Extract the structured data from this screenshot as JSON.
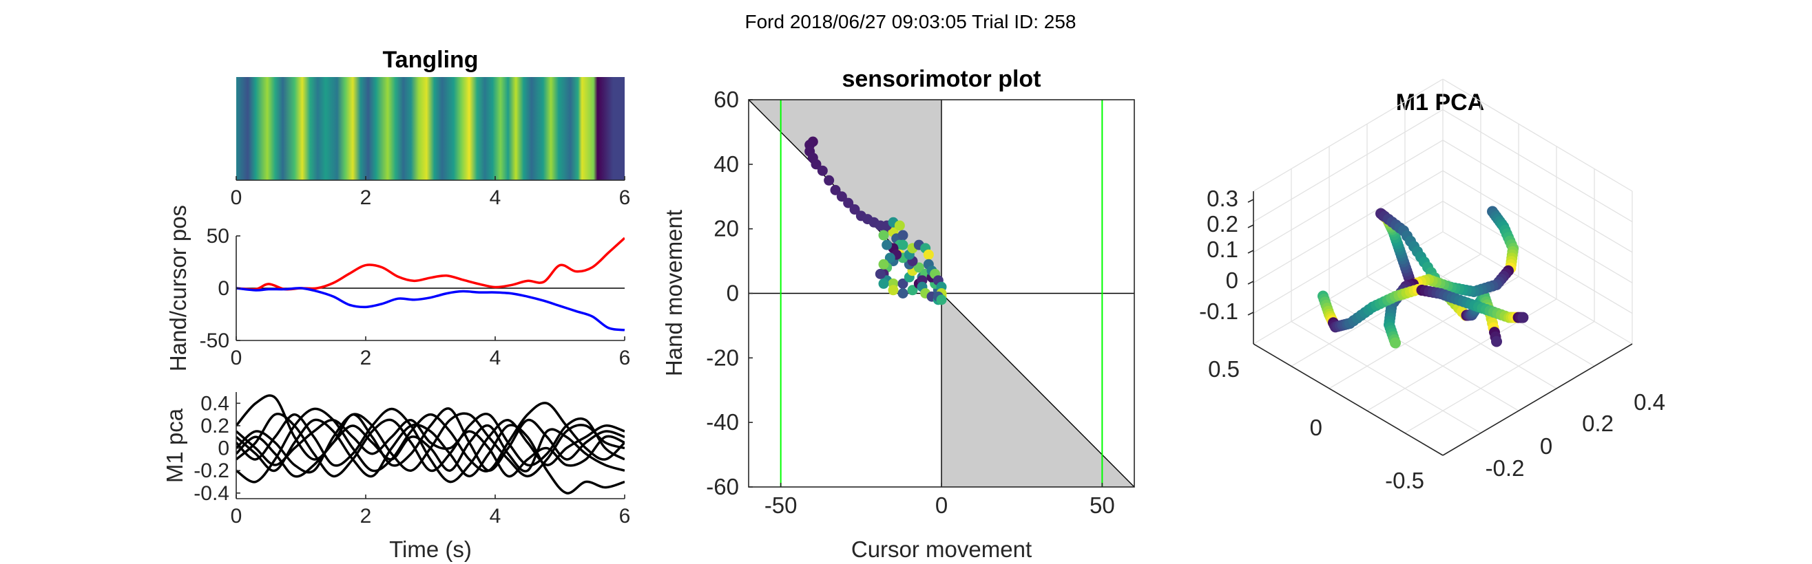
{
  "figure": {
    "suptitle": "Ford 2018/06/27 09:03:05 Trial ID: 258"
  },
  "chart_data": [
    {
      "id": "tangling",
      "type": "heatmap",
      "title": "Tangling",
      "xlabel": "",
      "ylabel": "",
      "xlim": [
        0,
        6
      ],
      "xticks": [
        0,
        2,
        4,
        6
      ],
      "colormap": "viridis",
      "bands": [
        [
          0.0,
          0.45
        ],
        [
          0.03,
          0.25
        ],
        [
          0.05,
          0.55
        ],
        [
          0.08,
          0.85
        ],
        [
          0.1,
          0.6
        ],
        [
          0.12,
          0.35
        ],
        [
          0.15,
          0.7
        ],
        [
          0.17,
          0.95
        ],
        [
          0.19,
          0.6
        ],
        [
          0.21,
          0.4
        ],
        [
          0.23,
          0.55
        ],
        [
          0.26,
          0.4
        ],
        [
          0.28,
          0.75
        ],
        [
          0.3,
          0.95
        ],
        [
          0.32,
          0.5
        ],
        [
          0.34,
          0.3
        ],
        [
          0.36,
          0.55
        ],
        [
          0.39,
          0.85
        ],
        [
          0.41,
          0.6
        ],
        [
          0.43,
          0.35
        ],
        [
          0.45,
          0.5
        ],
        [
          0.47,
          0.85
        ],
        [
          0.49,
          0.95
        ],
        [
          0.51,
          0.55
        ],
        [
          0.53,
          0.35
        ],
        [
          0.56,
          0.55
        ],
        [
          0.58,
          0.8
        ],
        [
          0.6,
          0.97
        ],
        [
          0.62,
          0.6
        ],
        [
          0.64,
          0.4
        ],
        [
          0.66,
          0.55
        ],
        [
          0.68,
          0.8
        ],
        [
          0.7,
          0.55
        ],
        [
          0.72,
          0.9
        ],
        [
          0.74,
          0.55
        ],
        [
          0.76,
          0.35
        ],
        [
          0.79,
          0.55
        ],
        [
          0.81,
          0.85
        ],
        [
          0.83,
          0.55
        ],
        [
          0.86,
          0.35
        ],
        [
          0.88,
          0.6
        ],
        [
          0.89,
          0.95
        ],
        [
          0.92,
          0.8
        ],
        [
          0.93,
          0.0
        ],
        [
          0.97,
          0.2
        ]
      ]
    },
    {
      "id": "handcursor",
      "type": "line",
      "title": "",
      "xlabel": "",
      "ylabel": "Hand/cursor pos",
      "xlim": [
        0,
        6
      ],
      "ylim": [
        -50,
        50
      ],
      "xticks": [
        0,
        2,
        4,
        6
      ],
      "yticks": [
        -50,
        0,
        50
      ],
      "x": [
        0,
        0.3,
        0.5,
        0.75,
        1.0,
        1.25,
        1.5,
        1.75,
        2.0,
        2.25,
        2.5,
        2.75,
        3.0,
        3.25,
        3.5,
        3.75,
        4.0,
        4.25,
        4.5,
        4.75,
        5.0,
        5.25,
        5.5,
        5.75,
        6.0
      ],
      "series": [
        {
          "color": "#ff0000",
          "values": [
            0,
            -1,
            4,
            -1,
            0,
            0,
            5,
            14,
            22,
            20,
            11,
            7,
            10,
            12,
            8,
            4,
            1,
            3,
            7,
            6,
            22,
            16,
            20,
            34,
            48
          ]
        },
        {
          "color": "#0000ff",
          "values": [
            0,
            -2,
            -1,
            -1,
            0,
            -3,
            -8,
            -16,
            -18,
            -15,
            -10,
            -11,
            -9,
            -5,
            -3,
            -4,
            -4,
            -5,
            -8,
            -12,
            -17,
            -22,
            -27,
            -38,
            -40
          ]
        }
      ],
      "reference_line": 0
    },
    {
      "id": "m1pca_time",
      "type": "line",
      "title": "",
      "xlabel": "Time (s)",
      "ylabel": "M1 pca",
      "xlim": [
        0,
        6
      ],
      "ylim": [
        -0.45,
        0.5
      ],
      "xticks": [
        0,
        2,
        4,
        6
      ],
      "yticks": [
        -0.4,
        -0.2,
        0,
        0.2,
        0.4
      ],
      "x": [
        0,
        0.3,
        0.6,
        0.9,
        1.2,
        1.5,
        1.8,
        2.1,
        2.4,
        2.7,
        3.0,
        3.3,
        3.6,
        3.9,
        4.2,
        4.5,
        4.8,
        5.1,
        5.4,
        5.7,
        6.0
      ],
      "series": [
        {
          "color": "#000000",
          "values": [
            0.2,
            0.4,
            0.45,
            0.1,
            -0.1,
            0.05,
            0.3,
            0.1,
            -0.15,
            -0.05,
            0.2,
            0.35,
            0.05,
            -0.2,
            0.0,
            0.25,
            0.1,
            -0.1,
            0.05,
            0.15,
            0.1
          ]
        },
        {
          "color": "#000000",
          "values": [
            -0.1,
            0.05,
            0.3,
            0.2,
            -0.05,
            -0.25,
            -0.1,
            0.15,
            0.25,
            0.05,
            -0.2,
            -0.05,
            0.2,
            0.3,
            0.05,
            -0.15,
            -0.05,
            0.2,
            0.25,
            0.0,
            -0.1
          ]
        },
        {
          "color": "#000000",
          "values": [
            0.1,
            -0.05,
            -0.2,
            0.05,
            0.25,
            0.15,
            -0.1,
            -0.25,
            0.0,
            0.2,
            0.15,
            -0.05,
            -0.25,
            -0.05,
            0.2,
            0.1,
            -0.2,
            -0.4,
            -0.3,
            -0.35,
            -0.3
          ]
        },
        {
          "color": "#000000",
          "values": [
            0.0,
            0.15,
            0.05,
            -0.15,
            -0.2,
            0.1,
            0.3,
            0.2,
            -0.05,
            -0.2,
            0.0,
            0.25,
            0.3,
            0.1,
            -0.1,
            -0.25,
            -0.1,
            0.15,
            0.2,
            0.05,
            0.0
          ]
        },
        {
          "color": "#000000",
          "values": [
            -0.2,
            -0.3,
            -0.1,
            0.2,
            0.35,
            0.25,
            0.0,
            -0.2,
            -0.1,
            0.15,
            0.3,
            0.15,
            -0.1,
            -0.2,
            0.05,
            0.3,
            0.4,
            0.2,
            0.0,
            -0.1,
            0.05
          ]
        },
        {
          "color": "#000000",
          "values": [
            0.05,
            -0.1,
            0.1,
            0.3,
            0.1,
            -0.15,
            -0.05,
            0.2,
            0.35,
            0.2,
            -0.1,
            -0.3,
            -0.15,
            0.1,
            0.25,
            0.05,
            -0.15,
            0.0,
            0.1,
            0.2,
            0.15
          ]
        },
        {
          "color": "#000000",
          "values": [
            -0.05,
            0.1,
            -0.05,
            -0.25,
            -0.15,
            0.05,
            0.2,
            0.05,
            -0.1,
            0.1,
            0.0,
            -0.2,
            0.05,
            0.2,
            -0.05,
            -0.2,
            0.15,
            0.1,
            -0.05,
            -0.15,
            -0.2
          ]
        },
        {
          "color": "#000000",
          "values": [
            0.15,
            0.0,
            -0.15,
            0.0,
            0.15,
            0.25,
            0.1,
            -0.05,
            0.1,
            0.25,
            0.05,
            0.0,
            0.15,
            0.0,
            -0.25,
            -0.1,
            0.0,
            -0.15,
            -0.1,
            0.1,
            0.05
          ]
        }
      ]
    },
    {
      "id": "sensorimotor",
      "type": "scatter",
      "title": "sensorimotor plot",
      "xlabel": "Cursor movement",
      "ylabel": "Hand movement",
      "xlim": [
        -60,
        60
      ],
      "ylim": [
        -60,
        60
      ],
      "xticks": [
        -50,
        0,
        50
      ],
      "yticks": [
        -60,
        -40,
        -20,
        0,
        20,
        40,
        60
      ],
      "reference_lines": {
        "x": [
          -50,
          50
        ],
        "color": "#00ff00"
      },
      "points": [
        [
          -40,
          47
        ],
        [
          -41,
          46
        ],
        [
          -41,
          44
        ],
        [
          -40,
          42
        ],
        [
          -39,
          40
        ],
        [
          -37,
          38
        ],
        [
          -35,
          35
        ],
        [
          -33,
          32
        ],
        [
          -31,
          30
        ],
        [
          -29,
          28
        ],
        [
          -27,
          26
        ],
        [
          -25,
          24
        ],
        [
          -23,
          23
        ],
        [
          -21,
          22
        ],
        [
          -19,
          21
        ],
        [
          -17,
          20
        ],
        [
          -15,
          19
        ],
        [
          -14,
          17
        ],
        [
          -13,
          15
        ],
        [
          -15,
          14
        ],
        [
          -17,
          15
        ],
        [
          -18,
          18
        ],
        [
          -17,
          21
        ],
        [
          -15,
          22
        ],
        [
          -13,
          21
        ],
        [
          -12,
          18
        ],
        [
          -12,
          15
        ],
        [
          -13,
          12
        ],
        [
          -15,
          10
        ],
        [
          -17,
          8
        ],
        [
          -18,
          6
        ],
        [
          -17,
          4
        ],
        [
          -15,
          3
        ],
        [
          -12,
          3
        ],
        [
          -10,
          5
        ],
        [
          -9,
          7
        ],
        [
          -10,
          9
        ],
        [
          -12,
          11
        ],
        [
          -14,
          12
        ],
        [
          -16,
          11
        ],
        [
          -18,
          9
        ],
        [
          -19,
          6
        ],
        [
          -18,
          3
        ],
        [
          -15,
          1
        ],
        [
          -12,
          0
        ],
        [
          -9,
          1
        ],
        [
          -7,
          3
        ],
        [
          -6,
          5
        ],
        [
          -7,
          8
        ],
        [
          -9,
          10
        ],
        [
          -10,
          12
        ],
        [
          -9,
          14
        ],
        [
          -7,
          15
        ],
        [
          -5,
          14
        ],
        [
          -4,
          12
        ],
        [
          -4,
          9
        ],
        [
          -5,
          6
        ],
        [
          -6,
          4
        ],
        [
          -6,
          2
        ],
        [
          -5,
          0
        ],
        [
          -3,
          -1
        ],
        [
          -1,
          -2
        ],
        [
          0,
          -1
        ],
        [
          -1,
          1
        ],
        [
          -2,
          3
        ],
        [
          -3,
          5
        ],
        [
          -3,
          7
        ],
        [
          -2,
          6
        ],
        [
          -1,
          4
        ],
        [
          0,
          2
        ],
        [
          0,
          0
        ],
        [
          -1,
          -1
        ],
        [
          0,
          -2
        ]
      ]
    },
    {
      "id": "m1pca_3d",
      "type": "scatter",
      "title": "M1 PCA",
      "xlabel": "",
      "ylabel": "",
      "zticks": [
        -0.1,
        0,
        0.1,
        0.2,
        0.3
      ],
      "yticks": [
        -0.5,
        0,
        0.5
      ],
      "xticks": [
        -0.2,
        0,
        0.2,
        0.4
      ],
      "trajectories": [
        [
          [
            -0.05,
            -0.1,
            0.05
          ],
          [
            -0.1,
            -0.05,
            0.1
          ],
          [
            -0.15,
            0.0,
            0.15
          ],
          [
            -0.2,
            0.05,
            0.2
          ],
          [
            -0.25,
            0.1,
            0.22
          ],
          [
            -0.3,
            0.15,
            0.2
          ],
          [
            -0.25,
            0.2,
            0.1
          ],
          [
            -0.15,
            0.15,
            0.0
          ],
          [
            -0.05,
            0.1,
            -0.1
          ],
          [
            0.05,
            0.05,
            -0.15
          ],
          [
            0.1,
            0.0,
            -0.1
          ],
          [
            0.15,
            -0.05,
            0.0
          ],
          [
            0.2,
            -0.1,
            0.1
          ],
          [
            0.25,
            -0.15,
            0.05
          ],
          [
            0.3,
            -0.2,
            -0.05
          ]
        ],
        [
          [
            0.0,
            0.3,
            0.25
          ],
          [
            0.05,
            0.28,
            0.2
          ],
          [
            0.1,
            0.25,
            0.12
          ],
          [
            0.12,
            0.2,
            0.05
          ],
          [
            0.1,
            0.15,
            -0.02
          ],
          [
            0.05,
            0.1,
            -0.05
          ],
          [
            0.0,
            0.05,
            -0.02
          ],
          [
            -0.05,
            0.0,
            0.03
          ],
          [
            -0.1,
            -0.05,
            0.0
          ],
          [
            -0.12,
            -0.1,
            -0.08
          ],
          [
            -0.1,
            -0.15,
            -0.15
          ],
          [
            -0.05,
            -0.2,
            -0.2
          ]
        ],
        [
          [
            -0.3,
            -0.2,
            -0.05
          ],
          [
            -0.25,
            -0.25,
            -0.1
          ],
          [
            -0.2,
            -0.3,
            -0.12
          ],
          [
            -0.15,
            -0.3,
            -0.08
          ],
          [
            -0.1,
            -0.25,
            0.0
          ],
          [
            -0.05,
            -0.2,
            0.05
          ],
          [
            0.0,
            -0.15,
            0.08
          ],
          [
            0.05,
            -0.1,
            0.05
          ],
          [
            0.1,
            -0.05,
            0.0
          ],
          [
            0.15,
            0.0,
            -0.05
          ],
          [
            0.2,
            0.05,
            -0.1
          ],
          [
            0.22,
            0.1,
            -0.12
          ]
        ]
      ],
      "colormap": "viridis"
    }
  ]
}
